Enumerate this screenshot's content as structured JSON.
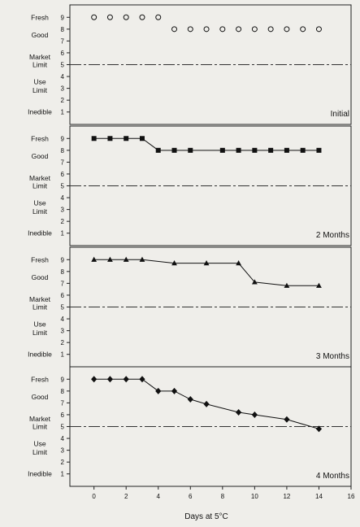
{
  "chart_data": {
    "type": "line",
    "xlabel": "Days at 5°C",
    "xlim": [
      -1.5,
      16
    ],
    "x_ticks": [
      0,
      2,
      4,
      6,
      8,
      10,
      12,
      14,
      16
    ],
    "ylim": [
      0.5,
      9.5
    ],
    "y_ticks": [
      1,
      2,
      3,
      4,
      5,
      6,
      7,
      8,
      9
    ],
    "market_limit": 5,
    "grid": false,
    "y_categories": [
      {
        "label": "Fresh",
        "y": 9
      },
      {
        "label": "Good",
        "y": 7.5
      },
      {
        "label": "Market",
        "y": 5.65
      },
      {
        "label": "Limit",
        "y": 5.0
      },
      {
        "label": "Use",
        "y": 3.55
      },
      {
        "label": "Limit",
        "y": 2.85
      },
      {
        "label": "Inedible",
        "y": 1
      }
    ],
    "panels": [
      {
        "label": "Initial",
        "marker": "circle-open",
        "connect": false,
        "x": [
          0,
          1,
          2,
          3,
          4,
          5,
          6,
          7,
          8,
          9,
          10,
          11,
          12,
          13,
          14
        ],
        "y": [
          9,
          9,
          9,
          9,
          9,
          8,
          8,
          8,
          8,
          8,
          8,
          8,
          8,
          8,
          8
        ]
      },
      {
        "label": "2 Months",
        "marker": "square",
        "connect": true,
        "x": [
          0,
          1,
          2,
          3,
          4,
          5,
          6,
          8,
          9,
          10,
          11,
          12,
          13,
          14
        ],
        "y": [
          9,
          9,
          9,
          9,
          8,
          8,
          8,
          8,
          8,
          8,
          8,
          8,
          8,
          8
        ]
      },
      {
        "label": "3 Months",
        "marker": "triangle",
        "connect": true,
        "x": [
          0,
          1,
          2,
          3,
          5,
          7,
          9,
          10,
          12,
          14
        ],
        "y": [
          9,
          9,
          9,
          9,
          8.7,
          8.7,
          8.7,
          7.1,
          6.8,
          6.8
        ]
      },
      {
        "label": "4 Months",
        "marker": "diamond",
        "connect": true,
        "x": [
          0,
          1,
          2,
          3,
          4,
          5,
          6,
          7,
          9,
          10,
          12,
          14
        ],
        "y": [
          9,
          9,
          9,
          9,
          8,
          8,
          7.3,
          6.9,
          6.2,
          6.0,
          5.6,
          4.8
        ]
      }
    ]
  }
}
